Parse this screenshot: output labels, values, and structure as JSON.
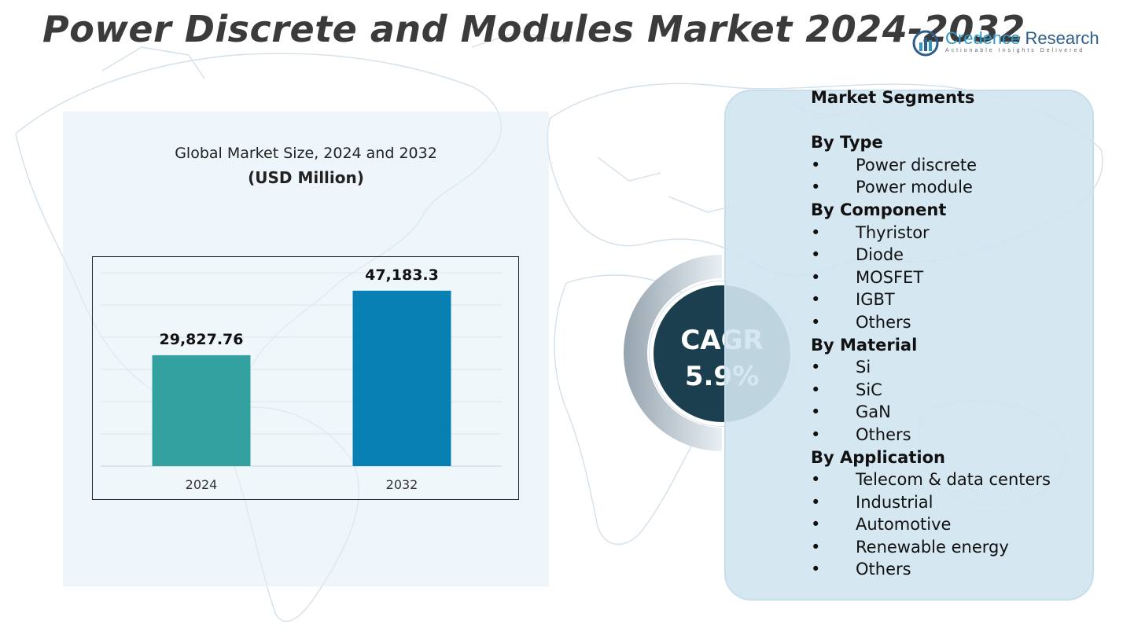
{
  "title": "Power Discrete and Modules Market 2024-2032",
  "logo": {
    "brand_a": "Credence",
    "brand_b": " Research",
    "tagline": "Actionable Insights Delivered"
  },
  "chart_panel": {
    "subtitle": "Global Market Size, 2024 and 2032",
    "unit": "(USD Million)"
  },
  "chart_data": {
    "type": "bar",
    "title": "Global Market Size, 2024 and 2032",
    "ylabel": "(USD Million)",
    "xlabel": "",
    "categories": [
      "2024",
      "2032"
    ],
    "values": [
      29827.76,
      47183.3
    ],
    "value_labels": [
      "29,827.76",
      "47,183.3"
    ],
    "colors": [
      "#33a19f",
      "#0880b4"
    ],
    "ylim": [
      0,
      52000
    ],
    "grid": true,
    "legend": "none"
  },
  "cagr": {
    "label": "CAGR",
    "value": "5.9%"
  },
  "segments": {
    "heading": "Market Segments",
    "groups": [
      {
        "title": "By Type",
        "items": [
          "Power discrete",
          "Power module"
        ]
      },
      {
        "title": "By Component",
        "items": [
          "Thyristor",
          "Diode",
          "MOSFET",
          "IGBT",
          "Others"
        ]
      },
      {
        "title": "By Material",
        "items": [
          "Si",
          "SiC",
          "GaN",
          "Others"
        ]
      },
      {
        "title": "By Application",
        "items": [
          "Telecom & data centers",
          "Industrial",
          "Automotive",
          "Renewable energy",
          "Others"
        ]
      }
    ]
  },
  "colors": {
    "title": "#3b3b3b",
    "cagr_bg": "#1b3f4e",
    "panel_bg": "#d0e4f0",
    "bar_2024": "#33a19f",
    "bar_2032": "#0880b4"
  }
}
